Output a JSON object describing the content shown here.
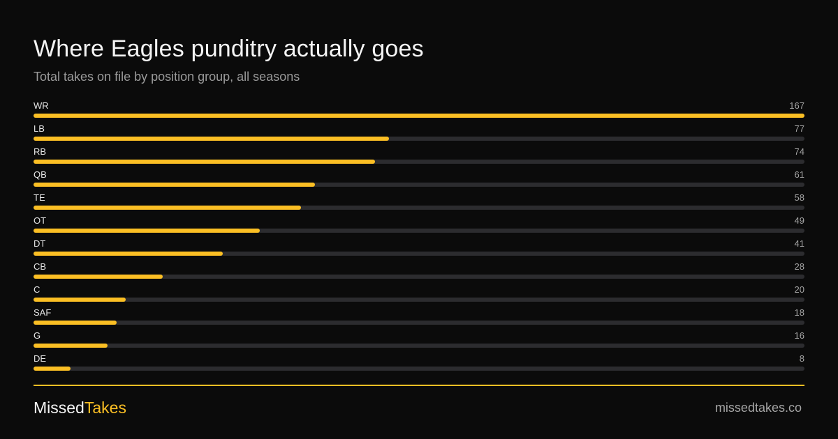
{
  "header": {
    "title": "Where Eagles punditry actually goes",
    "subtitle": "Total takes on file by position group, all seasons"
  },
  "colors": {
    "background": "#0b0b0b",
    "accent": "#fbbf24",
    "track": "#2c2c2f",
    "muted_text": "#a5a5a5"
  },
  "chart_data": {
    "type": "bar",
    "orientation": "horizontal",
    "title": "Where Eagles punditry actually goes",
    "subtitle": "Total takes on file by position group, all seasons",
    "xlabel": "",
    "ylabel": "",
    "xlim": [
      0,
      167
    ],
    "grid": false,
    "legend": "none",
    "categories": [
      "WR",
      "LB",
      "RB",
      "QB",
      "TE",
      "OT",
      "DT",
      "CB",
      "C",
      "SAF",
      "G",
      "DE"
    ],
    "values": [
      167,
      77,
      74,
      61,
      58,
      49,
      41,
      28,
      20,
      18,
      16,
      8
    ]
  },
  "footer": {
    "brand_part1": "Missed",
    "brand_part2": "Takes",
    "site": "missedtakes.co"
  }
}
